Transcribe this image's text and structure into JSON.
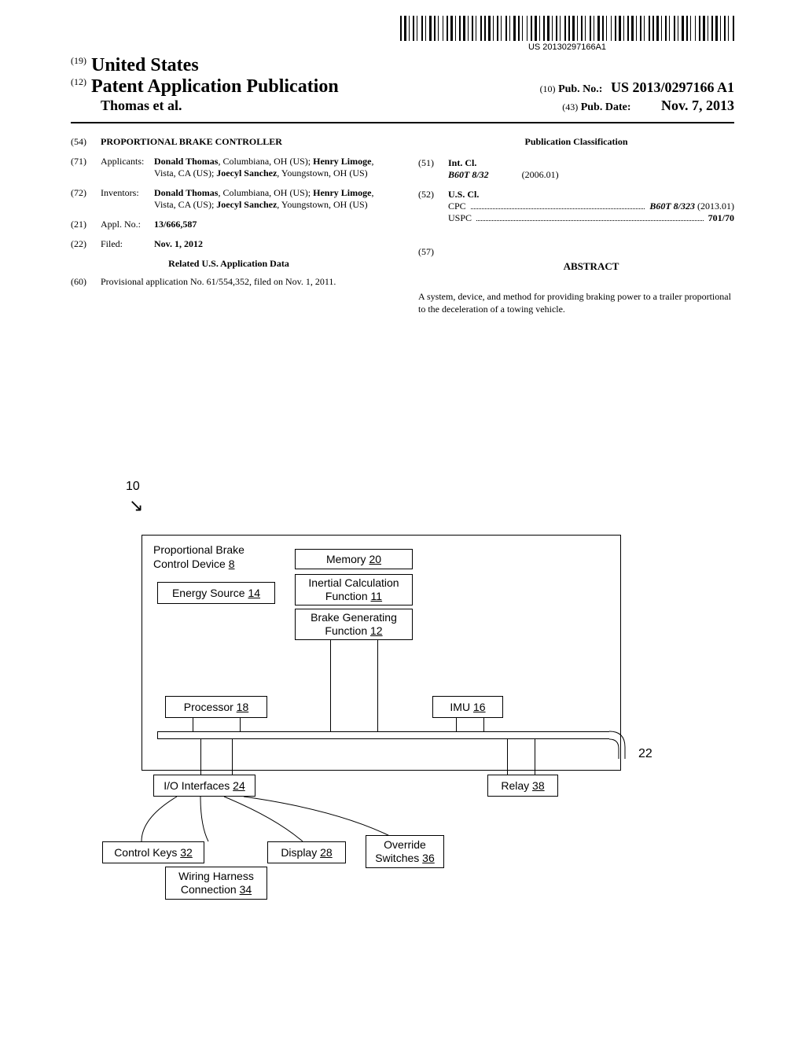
{
  "barcode_text": "US 20130297166A1",
  "header": {
    "country": "United States",
    "country_code": "(19)",
    "doc_type": "Patent Application Publication",
    "doc_type_code": "(12)",
    "author": "Thomas et al.",
    "pubno_code": "(10)",
    "pubno_label": "Pub. No.:",
    "pubno": "US 2013/0297166 A1",
    "pubdate_code": "(43)",
    "pubdate_label": "Pub. Date:",
    "pubdate": "Nov. 7, 2013"
  },
  "left_col": {
    "title_code": "(54)",
    "title": "PROPORTIONAL BRAKE CONTROLLER",
    "applicants_code": "(71)",
    "applicants_label": "Applicants:",
    "applicants_html": "<b>Donald Thomas</b>, Columbiana, OH (US); <b>Henry Limoge</b>, Vista, CA (US); <b>Joecyl Sanchez</b>, Youngstown, OH (US)",
    "inventors_code": "(72)",
    "inventors_label": "Inventors:",
    "inventors_html": "<b>Donald Thomas</b>, Columbiana, OH (US); <b>Henry Limoge</b>, Vista, CA (US); <b>Joecyl Sanchez</b>, Youngstown, OH (US)",
    "applno_code": "(21)",
    "applno_label": "Appl. No.:",
    "applno": "13/666,587",
    "filed_code": "(22)",
    "filed_label": "Filed:",
    "filed": "Nov. 1, 2012",
    "related_heading": "Related U.S. Application Data",
    "provisional_code": "(60)",
    "provisional": "Provisional application No. 61/554,352, filed on Nov. 1, 2011."
  },
  "right_col": {
    "classification_heading": "Publication Classification",
    "intcl_code": "(51)",
    "intcl_label": "Int. Cl.",
    "intcl_class": "B60T 8/32",
    "intcl_year": "(2006.01)",
    "uscl_code": "(52)",
    "uscl_label": "U.S. Cl.",
    "cpc_label": "CPC",
    "cpc_value": "B60T 8/323",
    "cpc_year": "(2013.01)",
    "uspc_label": "USPC",
    "uspc_value": "701/70",
    "abstract_code": "(57)",
    "abstract_heading": "ABSTRACT",
    "abstract_text": "A system, device, and method for providing braking power to a trailer proportional to the deceleration of a towing vehicle."
  },
  "diagram": {
    "fig_ref": "10",
    "outer_title_line1": "Proportional Brake",
    "outer_title_line2": "Control Device",
    "outer_title_num": "8",
    "energy_source": "Energy Source",
    "energy_source_num": "14",
    "memory": "Memory",
    "memory_num": "20",
    "inertial_line1": "Inertial Calculation",
    "inertial_line2": "Function",
    "inertial_num": "11",
    "brake_line1": "Brake Generating",
    "brake_line2": "Function",
    "brake_num": "12",
    "processor": "Processor",
    "processor_num": "18",
    "imu": "IMU",
    "imu_num": "16",
    "bus_num": "22",
    "io": "I/O Interfaces",
    "io_num": "24",
    "relay": "Relay",
    "relay_num": "38",
    "control_keys": "Control Keys",
    "control_keys_num": "32",
    "display": "Display",
    "display_num": "28",
    "override_line1": "Override",
    "override_line2": "Switches",
    "override_num": "36",
    "wiring_line1": "Wiring Harness",
    "wiring_line2": "Connection",
    "wiring_num": "34"
  }
}
